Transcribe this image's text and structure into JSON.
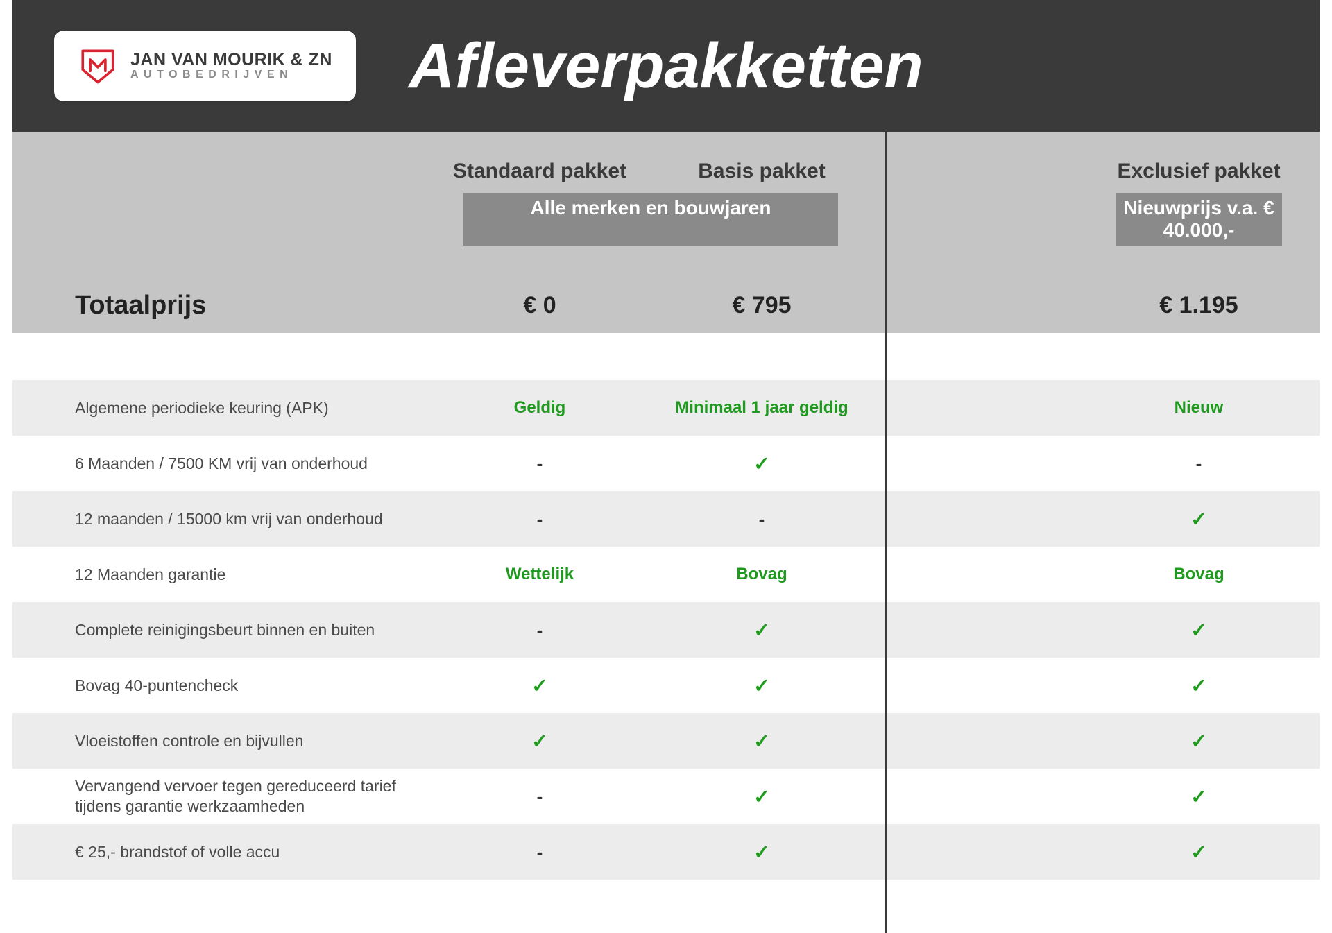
{
  "brand": {
    "line1": "JAN VAN MOURIK & ZN",
    "line2": "AUTOBEDRIJVEN",
    "accent_color": "#d9232e"
  },
  "title": "Afleverpakketten",
  "columns": {
    "standaard": {
      "label": "Standaard pakket",
      "price": "€ 0"
    },
    "basis": {
      "label": "Basis pakket",
      "price": "€ 795"
    },
    "exclusief": {
      "label": "Exclusief pakket",
      "price": "€ 1.195"
    }
  },
  "badges": {
    "left": "Alle merken en bouwjaren",
    "right": "Nieuwprijs v.a. € 40.000,-"
  },
  "price_label": "Totaalprijs",
  "features": [
    {
      "label": "Algemene periodieke keuring (APK)",
      "standaard": {
        "text": "Geldig",
        "type": "text"
      },
      "basis": {
        "text": "Minimaal 1 jaar geldig",
        "type": "text"
      },
      "exclusief": {
        "text": "Nieuw",
        "type": "text"
      }
    },
    {
      "label": "6 Maanden / 7500 KM vrij van onderhoud",
      "standaard": {
        "type": "dash"
      },
      "basis": {
        "type": "check"
      },
      "exclusief": {
        "type": "dash"
      }
    },
    {
      "label": "12 maanden / 15000 km vrij van onderhoud",
      "standaard": {
        "type": "dash"
      },
      "basis": {
        "type": "dash"
      },
      "exclusief": {
        "type": "check"
      }
    },
    {
      "label": "12 Maanden  garantie",
      "standaard": {
        "text": "Wettelijk",
        "type": "text"
      },
      "basis": {
        "text": "Bovag",
        "type": "text"
      },
      "exclusief": {
        "text": "Bovag",
        "type": "text"
      }
    },
    {
      "label": "Complete reinigingsbeurt binnen en buiten",
      "standaard": {
        "type": "dash"
      },
      "basis": {
        "type": "check"
      },
      "exclusief": {
        "type": "check"
      }
    },
    {
      "label": "Bovag 40-puntencheck",
      "standaard": {
        "type": "check"
      },
      "basis": {
        "type": "check"
      },
      "exclusief": {
        "type": "check"
      }
    },
    {
      "label": "Vloeistoffen controle en bijvullen",
      "standaard": {
        "type": "check"
      },
      "basis": {
        "type": "check"
      },
      "exclusief": {
        "type": "check"
      }
    },
    {
      "label": "Vervangend vervoer tegen gereduceerd tarief tijdens garantie werkzaamheden",
      "standaard": {
        "type": "dash"
      },
      "basis": {
        "type": "check"
      },
      "exclusief": {
        "type": "check"
      }
    },
    {
      "label": "€ 25,- brandstof of  volle accu",
      "standaard": {
        "type": "dash"
      },
      "basis": {
        "type": "check"
      },
      "exclusief": {
        "type": "check"
      }
    }
  ],
  "colors": {
    "header_bg": "#3a3a3a",
    "subheader_bg": "#c5c5c5",
    "badge_bg": "#8a8a8a",
    "row_alt_bg": "#ececec",
    "green": "#1f9a1f"
  }
}
